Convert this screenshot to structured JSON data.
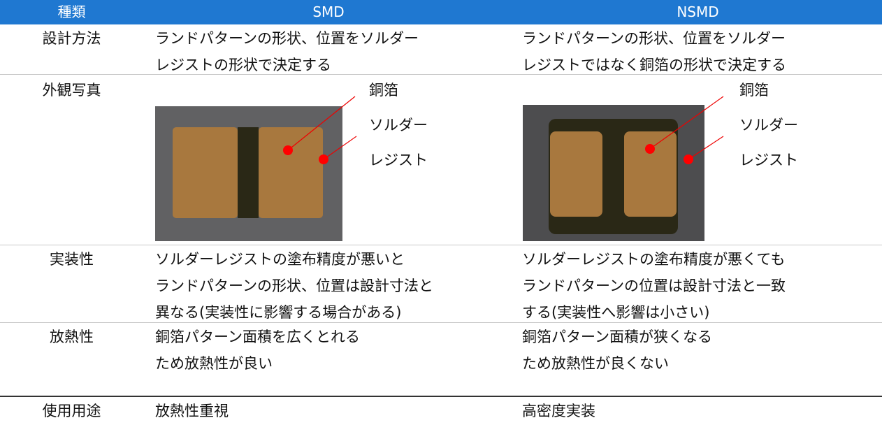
{
  "header": [
    "種類",
    "SMD",
    "NSMD"
  ],
  "rows": [
    {
      "label": "設計方法",
      "smd": [
        "ランドパターンの形状、位置をソルダー",
        "レジストの形状で決定する"
      ],
      "nsmd": [
        "ランドパターンの形状、位置をソルダー",
        "レジストではなく銅箔の形状で決定する"
      ]
    },
    {
      "label": "外観写真",
      "smd_photo_labels": [
        "銅箔",
        "ソルダー",
        "レジスト"
      ],
      "nsmd_photo_labels": [
        "銅箔",
        "ソルダー",
        "レジスト"
      ]
    },
    {
      "label": "実装性",
      "smd": [
        "ソルダーレジストの塗布精度が悪いと",
        "ランドパターンの形状、位置は設計寸法と",
        "異なる(実装性に影響する場合がある)"
      ],
      "nsmd": [
        "ソルダーレジストの塗布精度が悪くても",
        "ランドパターンの位置は設計寸法と一致",
        "する(実装性へ影響は小さい)"
      ]
    },
    {
      "label": "放熱性",
      "smd": [
        "銅箔パターン面積を広くとれる",
        "ため放熱性が良い"
      ],
      "nsmd": [
        "銅箔パターン面積が狭くなる",
        "ため放熱性が良くない"
      ]
    },
    {
      "label": "使用用途",
      "smd": [
        "放熱性重視"
      ],
      "nsmd": [
        "高密度実装"
      ]
    }
  ]
}
